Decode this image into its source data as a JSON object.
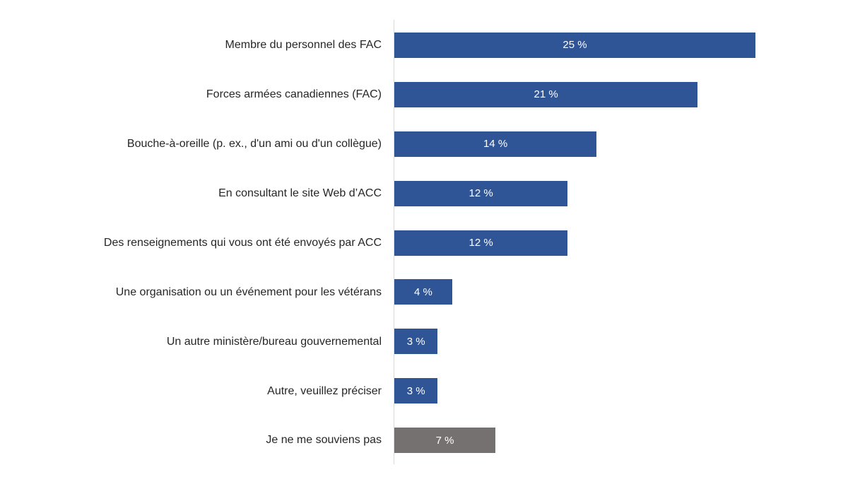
{
  "chart_data": {
    "type": "bar",
    "orientation": "horizontal",
    "title": "",
    "xlabel": "",
    "ylabel": "",
    "xlim": [
      0,
      30
    ],
    "grid": false,
    "legend": false,
    "categories": [
      "Membre du personnel des FAC",
      "Forces armées canadiennes (FAC)",
      "Bouche-à-oreille (p. ex., d'un ami ou d'un collègue)",
      "En consultant le site Web d’ACC",
      "Des renseignements qui vous ont été envoyés par ACC",
      "Une organisation ou un événement pour les vétérans",
      "Un autre ministère/bureau gouvernemental",
      "Autre, veuillez préciser",
      "Je ne me souviens pas"
    ],
    "values": [
      25,
      21,
      14,
      12,
      12,
      4,
      3,
      3,
      7
    ],
    "value_labels": [
      "25 %",
      "21 %",
      "14 %",
      "12 %",
      "12 %",
      "4 %",
      "3 %",
      "3 %",
      "7 %"
    ],
    "bar_colors": [
      "#2F5597",
      "#2F5597",
      "#2F5597",
      "#2F5597",
      "#2F5597",
      "#2F5597",
      "#2F5597",
      "#2F5597",
      "#767171"
    ],
    "colors": {
      "primary_bar": "#2F5597",
      "neutral_bar": "#767171",
      "axis_line": "#D9D9D9",
      "category_text": "#262626",
      "value_text": "#FFFFFF",
      "background": "#FFFFFF"
    }
  }
}
